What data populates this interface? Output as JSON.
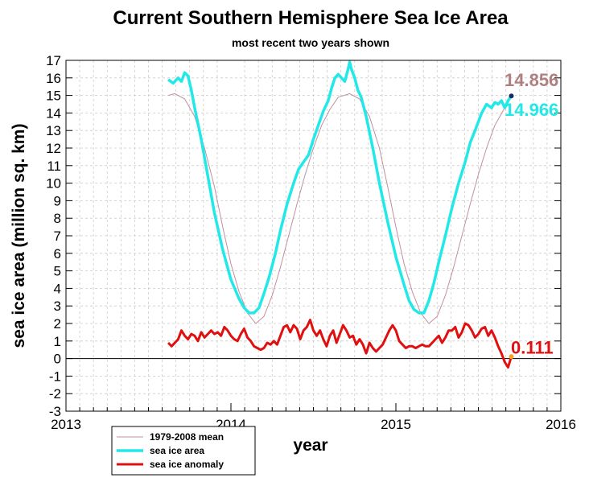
{
  "chart_data": {
    "type": "line",
    "title": "Current Southern Hemisphere Sea Ice Area",
    "subtitle": "most recent two years shown",
    "xlabel": "year",
    "ylabel": "sea ice area (million sq. km)",
    "xlim": [
      2013,
      2016
    ],
    "ylim": [
      -3,
      17
    ],
    "x_ticks": [
      "2013",
      "2014",
      "2015",
      "2016"
    ],
    "y_ticks": [
      "-3",
      "-2",
      "-1",
      "0",
      "1",
      "2",
      "3",
      "4",
      "5",
      "6",
      "7",
      "8",
      "9",
      "10",
      "11",
      "12",
      "13",
      "14",
      "15",
      "16",
      "17"
    ],
    "grid": true,
    "legend_position": "bottom-left",
    "colors": {
      "mean": "#c090a0",
      "area": "#22e8e8",
      "anomaly": "#e01010",
      "zero_line": "#000000",
      "label_mean": "#b08080",
      "label_area": "#22e8e8",
      "label_anomaly": "#e01010",
      "end_dot_area": "#1a2a66",
      "end_dot_anomaly": "#f5a623"
    },
    "end_labels": {
      "mean": "14.856",
      "area": "14.966",
      "anomaly": "0.111"
    },
    "series": [
      {
        "name": "1979-2008 mean",
        "x": [
          2013.62,
          2013.66,
          2013.72,
          2013.78,
          2013.84,
          2013.9,
          2013.95,
          2014.0,
          2014.05,
          2014.1,
          2014.15,
          2014.2,
          2014.25,
          2014.3,
          2014.35,
          2014.4,
          2014.45,
          2014.5,
          2014.55,
          2014.6,
          2014.65,
          2014.72,
          2014.78,
          2014.84,
          2014.9,
          2014.95,
          2015.0,
          2015.05,
          2015.1,
          2015.15,
          2015.2,
          2015.25,
          2015.3,
          2015.35,
          2015.4,
          2015.45,
          2015.5,
          2015.55,
          2015.6,
          2015.66,
          2015.7
        ],
        "values": [
          15.0,
          15.1,
          14.8,
          13.8,
          12.0,
          9.8,
          7.5,
          5.4,
          3.8,
          2.6,
          2.0,
          2.4,
          3.6,
          5.2,
          7.0,
          8.8,
          10.5,
          12.0,
          13.3,
          14.2,
          14.9,
          15.1,
          14.8,
          13.8,
          12.0,
          9.8,
          7.5,
          5.4,
          3.8,
          2.6,
          2.0,
          2.4,
          3.6,
          5.2,
          7.0,
          8.8,
          10.5,
          12.0,
          13.3,
          14.3,
          14.9
        ]
      },
      {
        "name": "sea ice area",
        "x": [
          2013.62,
          2013.65,
          2013.68,
          2013.7,
          2013.72,
          2013.74,
          2013.76,
          2013.78,
          2013.82,
          2013.86,
          2013.9,
          2013.95,
          2014.0,
          2014.05,
          2014.08,
          2014.11,
          2014.14,
          2014.17,
          2014.2,
          2014.23,
          2014.27,
          2014.3,
          2014.34,
          2014.38,
          2014.41,
          2014.44,
          2014.47,
          2014.5,
          2014.53,
          2014.56,
          2014.59,
          2014.61,
          2014.63,
          2014.65,
          2014.67,
          2014.69,
          2014.71,
          2014.72,
          2014.73,
          2014.75,
          2014.77,
          2014.79,
          2014.82,
          2014.86,
          2014.9,
          2014.95,
          2015.0,
          2015.05,
          2015.08,
          2015.11,
          2015.14,
          2015.17,
          2015.2,
          2015.23,
          2015.26,
          2015.3,
          2015.34,
          2015.38,
          2015.42,
          2015.45,
          2015.48,
          2015.52,
          2015.55,
          2015.58,
          2015.6,
          2015.62,
          2015.64,
          2015.66,
          2015.68,
          2015.7
        ],
        "values": [
          15.9,
          15.7,
          16.0,
          15.8,
          16.3,
          16.1,
          15.3,
          14.3,
          12.5,
          10.4,
          8.3,
          6.2,
          4.5,
          3.4,
          2.9,
          2.6,
          2.6,
          2.9,
          3.7,
          4.6,
          6.0,
          7.3,
          8.8,
          10.0,
          10.8,
          11.2,
          11.6,
          12.5,
          13.3,
          14.1,
          14.7,
          15.4,
          16.0,
          16.2,
          16.0,
          15.8,
          16.5,
          16.9,
          16.5,
          16.0,
          15.3,
          14.9,
          13.8,
          12.0,
          10.0,
          7.8,
          5.8,
          4.2,
          3.3,
          2.8,
          2.6,
          2.6,
          3.3,
          4.3,
          5.5,
          7.0,
          8.6,
          10.0,
          11.2,
          12.3,
          13.0,
          14.0,
          14.5,
          14.3,
          14.6,
          14.5,
          14.7,
          14.3,
          14.7,
          14.97
        ]
      },
      {
        "name": "sea ice anomaly",
        "x": [
          2013.62,
          2013.64,
          2013.66,
          2013.68,
          2013.7,
          2013.72,
          2013.74,
          2013.76,
          2013.78,
          2013.8,
          2013.82,
          2013.84,
          2013.86,
          2013.88,
          2013.9,
          2013.92,
          2013.94,
          2013.96,
          2013.98,
          2014.0,
          2014.02,
          2014.04,
          2014.06,
          2014.08,
          2014.1,
          2014.12,
          2014.14,
          2014.16,
          2014.18,
          2014.2,
          2014.22,
          2014.24,
          2014.26,
          2014.28,
          2014.3,
          2014.32,
          2014.34,
          2014.36,
          2014.38,
          2014.4,
          2014.42,
          2014.44,
          2014.46,
          2014.48,
          2014.5,
          2014.52,
          2014.54,
          2014.56,
          2014.58,
          2014.6,
          2014.62,
          2014.64,
          2014.66,
          2014.68,
          2014.7,
          2014.72,
          2014.74,
          2014.76,
          2014.78,
          2014.8,
          2014.82,
          2014.84,
          2014.86,
          2014.88,
          2014.9,
          2014.92,
          2014.94,
          2014.96,
          2014.98,
          2015.0,
          2015.02,
          2015.04,
          2015.06,
          2015.08,
          2015.1,
          2015.12,
          2015.14,
          2015.16,
          2015.18,
          2015.2,
          2015.22,
          2015.24,
          2015.26,
          2015.28,
          2015.3,
          2015.32,
          2015.34,
          2015.36,
          2015.38,
          2015.4,
          2015.42,
          2015.44,
          2015.46,
          2015.48,
          2015.5,
          2015.52,
          2015.54,
          2015.56,
          2015.58,
          2015.6,
          2015.62,
          2015.64,
          2015.66,
          2015.68,
          2015.7
        ],
        "values": [
          0.9,
          0.7,
          0.9,
          1.1,
          1.6,
          1.3,
          1.1,
          1.4,
          1.3,
          1.0,
          1.5,
          1.2,
          1.4,
          1.6,
          1.4,
          1.5,
          1.3,
          1.8,
          1.6,
          1.3,
          1.1,
          1.0,
          1.4,
          1.7,
          1.2,
          1.0,
          0.7,
          0.6,
          0.5,
          0.6,
          0.9,
          0.8,
          1.0,
          0.8,
          1.3,
          1.8,
          1.9,
          1.5,
          1.9,
          1.7,
          1.1,
          1.6,
          1.8,
          2.2,
          1.6,
          1.3,
          1.6,
          1.1,
          0.7,
          1.3,
          1.6,
          0.9,
          1.4,
          1.9,
          1.6,
          1.2,
          1.3,
          0.8,
          1.1,
          0.8,
          0.3,
          0.9,
          0.6,
          0.4,
          0.6,
          0.8,
          1.2,
          1.6,
          1.9,
          1.6,
          1.0,
          0.8,
          0.6,
          0.7,
          0.7,
          0.6,
          0.7,
          0.8,
          0.7,
          0.7,
          0.9,
          1.1,
          1.3,
          0.9,
          1.2,
          1.6,
          1.6,
          1.8,
          1.2,
          1.5,
          2.0,
          1.9,
          1.6,
          1.2,
          1.4,
          1.7,
          1.8,
          1.3,
          1.6,
          1.2,
          0.7,
          0.3,
          -0.2,
          -0.5,
          0.111
        ]
      }
    ]
  }
}
